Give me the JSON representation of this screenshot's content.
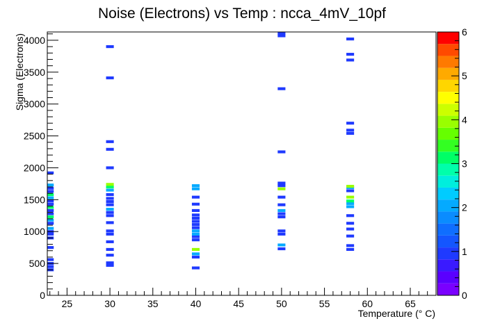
{
  "chart_data": {
    "type": "heatmap",
    "title": "Noise (Electrons) vs Temp : ncca_4mV_10pf",
    "xlabel": "Temperature (° C)",
    "ylabel": "Sigma (Electrons)",
    "xlim": [
      22.7,
      68.0
    ],
    "ylim": [
      0,
      4130
    ],
    "x_ticks": [
      25,
      30,
      35,
      40,
      45,
      50,
      55,
      60,
      65
    ],
    "y_ticks": [
      0,
      500,
      1000,
      1500,
      2000,
      2500,
      3000,
      3500,
      4000
    ],
    "x_bin_width": 0.9,
    "y_bin_width": 45,
    "z_range": [
      0,
      6
    ],
    "z_ticks": [
      0,
      1,
      2,
      3,
      4,
      5,
      6
    ],
    "palette": [
      "#7a00ff",
      "#5a00ff",
      "#3a1aff",
      "#1f3aff",
      "#1456ff",
      "#0f6eff",
      "#0a8cff",
      "#05aaff",
      "#00ccff",
      "#00eedd",
      "#00ffaa",
      "#00ff66",
      "#33ff22",
      "#66ff00",
      "#99ff00",
      "#ccff00",
      "#ffff00",
      "#ffd600",
      "#ffaa00",
      "#ff7a00",
      "#ff4a00",
      "#ff0000"
    ],
    "cells": [
      {
        "x": 23.0,
        "y": 400,
        "z": 1
      },
      {
        "x": 23.0,
        "y": 450,
        "z": 1
      },
      {
        "x": 23.0,
        "y": 500,
        "z": 1
      },
      {
        "x": 23.0,
        "y": 560,
        "z": 1
      },
      {
        "x": 23.0,
        "y": 750,
        "z": 1
      },
      {
        "x": 23.0,
        "y": 900,
        "z": 1
      },
      {
        "x": 23.0,
        "y": 960,
        "z": 1
      },
      {
        "x": 23.0,
        "y": 1000,
        "z": 1
      },
      {
        "x": 23.0,
        "y": 1050,
        "z": 2
      },
      {
        "x": 23.0,
        "y": 1130,
        "z": 1
      },
      {
        "x": 23.0,
        "y": 1180,
        "z": 2
      },
      {
        "x": 23.0,
        "y": 1230,
        "z": 3
      },
      {
        "x": 23.0,
        "y": 1280,
        "z": 1
      },
      {
        "x": 23.0,
        "y": 1330,
        "z": 1
      },
      {
        "x": 23.0,
        "y": 1380,
        "z": 3
      },
      {
        "x": 23.0,
        "y": 1430,
        "z": 1
      },
      {
        "x": 23.0,
        "y": 1480,
        "z": 1
      },
      {
        "x": 23.0,
        "y": 1530,
        "z": 2
      },
      {
        "x": 23.0,
        "y": 1580,
        "z": 3
      },
      {
        "x": 23.0,
        "y": 1630,
        "z": 1
      },
      {
        "x": 23.0,
        "y": 1680,
        "z": 1
      },
      {
        "x": 23.0,
        "y": 1730,
        "z": 2
      },
      {
        "x": 23.0,
        "y": 1920,
        "z": 1
      },
      {
        "x": 30.0,
        "y": 470,
        "z": 1
      },
      {
        "x": 30.0,
        "y": 510,
        "z": 1
      },
      {
        "x": 30.0,
        "y": 630,
        "z": 1
      },
      {
        "x": 30.0,
        "y": 720,
        "z": 1
      },
      {
        "x": 30.0,
        "y": 840,
        "z": 1
      },
      {
        "x": 30.0,
        "y": 960,
        "z": 1
      },
      {
        "x": 30.0,
        "y": 1010,
        "z": 1
      },
      {
        "x": 30.0,
        "y": 1140,
        "z": 1
      },
      {
        "x": 30.0,
        "y": 1250,
        "z": 1
      },
      {
        "x": 30.0,
        "y": 1300,
        "z": 1
      },
      {
        "x": 30.0,
        "y": 1350,
        "z": 2
      },
      {
        "x": 30.0,
        "y": 1420,
        "z": 1
      },
      {
        "x": 30.0,
        "y": 1470,
        "z": 1
      },
      {
        "x": 30.0,
        "y": 1520,
        "z": 1
      },
      {
        "x": 30.0,
        "y": 1580,
        "z": 1
      },
      {
        "x": 30.0,
        "y": 1650,
        "z": 2
      },
      {
        "x": 30.0,
        "y": 1700,
        "z": 3
      },
      {
        "x": 30.0,
        "y": 1740,
        "z": 4
      },
      {
        "x": 30.0,
        "y": 2000,
        "z": 1
      },
      {
        "x": 30.0,
        "y": 2290,
        "z": 1
      },
      {
        "x": 30.0,
        "y": 2410,
        "z": 1
      },
      {
        "x": 30.0,
        "y": 3410,
        "z": 1
      },
      {
        "x": 30.0,
        "y": 3900,
        "z": 1
      },
      {
        "x": 40.0,
        "y": 430,
        "z": 1
      },
      {
        "x": 40.0,
        "y": 600,
        "z": 1
      },
      {
        "x": 40.0,
        "y": 650,
        "z": 2
      },
      {
        "x": 40.0,
        "y": 720,
        "z": 4
      },
      {
        "x": 40.0,
        "y": 870,
        "z": 1
      },
      {
        "x": 40.0,
        "y": 920,
        "z": 1
      },
      {
        "x": 40.0,
        "y": 960,
        "z": 2
      },
      {
        "x": 40.0,
        "y": 1010,
        "z": 2
      },
      {
        "x": 40.0,
        "y": 1060,
        "z": 1
      },
      {
        "x": 40.0,
        "y": 1110,
        "z": 1
      },
      {
        "x": 40.0,
        "y": 1160,
        "z": 1
      },
      {
        "x": 40.0,
        "y": 1210,
        "z": 1
      },
      {
        "x": 40.0,
        "y": 1260,
        "z": 1
      },
      {
        "x": 40.0,
        "y": 1330,
        "z": 1
      },
      {
        "x": 40.0,
        "y": 1430,
        "z": 1
      },
      {
        "x": 40.0,
        "y": 1540,
        "z": 1
      },
      {
        "x": 40.0,
        "y": 1670,
        "z": 2
      },
      {
        "x": 40.0,
        "y": 1720,
        "z": 2
      },
      {
        "x": 50.0,
        "y": 730,
        "z": 1
      },
      {
        "x": 50.0,
        "y": 790,
        "z": 2
      },
      {
        "x": 50.0,
        "y": 960,
        "z": 1
      },
      {
        "x": 50.0,
        "y": 1010,
        "z": 1
      },
      {
        "x": 50.0,
        "y": 1230,
        "z": 1
      },
      {
        "x": 50.0,
        "y": 1280,
        "z": 1
      },
      {
        "x": 50.0,
        "y": 1330,
        "z": 2
      },
      {
        "x": 50.0,
        "y": 1420,
        "z": 1
      },
      {
        "x": 50.0,
        "y": 1540,
        "z": 1
      },
      {
        "x": 50.0,
        "y": 1670,
        "z": 4
      },
      {
        "x": 50.0,
        "y": 1720,
        "z": 1
      },
      {
        "x": 50.0,
        "y": 1760,
        "z": 1
      },
      {
        "x": 50.0,
        "y": 2250,
        "z": 1
      },
      {
        "x": 50.0,
        "y": 3240,
        "z": 1
      },
      {
        "x": 50.0,
        "y": 4070,
        "z": 1
      },
      {
        "x": 50.0,
        "y": 4110,
        "z": 1
      },
      {
        "x": 58.0,
        "y": 720,
        "z": 1
      },
      {
        "x": 58.0,
        "y": 780,
        "z": 1
      },
      {
        "x": 58.0,
        "y": 930,
        "z": 1
      },
      {
        "x": 58.0,
        "y": 1040,
        "z": 1
      },
      {
        "x": 58.0,
        "y": 1130,
        "z": 1
      },
      {
        "x": 58.0,
        "y": 1250,
        "z": 1
      },
      {
        "x": 58.0,
        "y": 1390,
        "z": 2
      },
      {
        "x": 58.0,
        "y": 1440,
        "z": 2
      },
      {
        "x": 58.0,
        "y": 1480,
        "z": 3
      },
      {
        "x": 58.0,
        "y": 1540,
        "z": 4
      },
      {
        "x": 58.0,
        "y": 1640,
        "z": 1
      },
      {
        "x": 58.0,
        "y": 1690,
        "z": 2
      },
      {
        "x": 58.0,
        "y": 1710,
        "z": 4
      },
      {
        "x": 58.0,
        "y": 2540,
        "z": 1
      },
      {
        "x": 58.0,
        "y": 2590,
        "z": 1
      },
      {
        "x": 58.0,
        "y": 2700,
        "z": 1
      },
      {
        "x": 58.0,
        "y": 3690,
        "z": 1
      },
      {
        "x": 58.0,
        "y": 3780,
        "z": 1
      },
      {
        "x": 58.0,
        "y": 4020,
        "z": 1
      }
    ]
  }
}
